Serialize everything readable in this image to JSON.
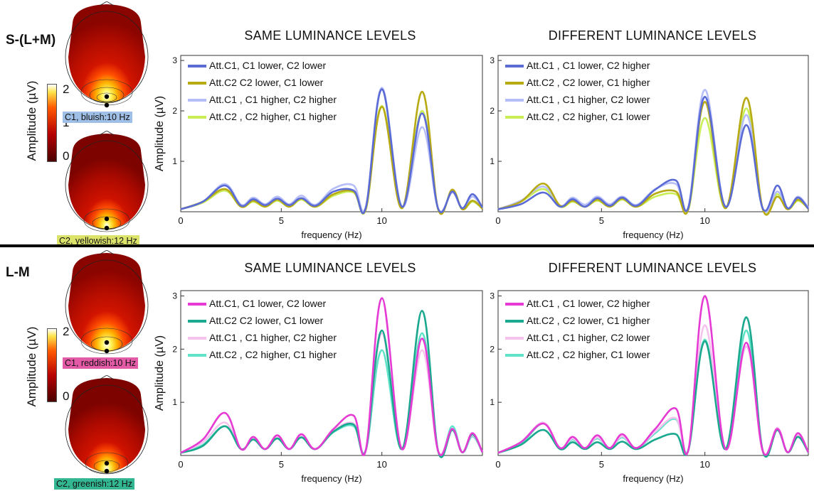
{
  "rows": [
    {
      "label": "S-(L+M)",
      "colorbar": {
        "label": "Amplitude (µV)",
        "ticks": [
          "2",
          "1",
          "0"
        ]
      },
      "heads": [
        {
          "caption": "C1, bluish:10 Hz",
          "caption_bg": "#9fbfe6"
        },
        {
          "caption": "C2, yellowish:12 Hz",
          "caption_bg": "#dbe36b"
        }
      ]
    },
    {
      "label": "L-M",
      "colorbar": {
        "label": "Amplitude (µV)",
        "ticks": [
          "2",
          "1",
          "0"
        ]
      },
      "heads": [
        {
          "caption": "C1, reddish:10 Hz",
          "caption_bg": "#e35aa6"
        },
        {
          "caption": "C2, greenish:12 Hz",
          "caption_bg": "#33b792"
        }
      ]
    }
  ],
  "chart_data": [
    {
      "type": "line",
      "title": "SAME LUMINANCE LEVELS",
      "xlabel": "frequency (Hz)",
      "ylabel": "Amplitude (µV)",
      "xlim": [
        0,
        15
      ],
      "ylim": [
        0,
        3.1
      ],
      "xticks": [
        "0",
        "5",
        "10"
      ],
      "yticks": [
        "1",
        "2",
        "3"
      ],
      "series": [
        {
          "name": "Att.C1, C1 lower, C2 lower",
          "color": "#5b6bd6",
          "values": [
            0.05,
            0.2,
            0.52,
            0.12,
            0.25,
            0.13,
            0.26,
            0.13,
            0.27,
            0.12,
            0.4,
            0.42,
            0.08,
            2.43,
            0.1,
            1.95,
            0.06,
            0.4,
            0.07,
            0.35,
            0.08
          ]
        },
        {
          "name": "Att.C2  C2 lower, C1 lower",
          "color": "#b7aa12",
          "values": [
            0.05,
            0.2,
            0.45,
            0.1,
            0.22,
            0.1,
            0.24,
            0.1,
            0.26,
            0.1,
            0.35,
            0.4,
            0.05,
            2.08,
            0.07,
            2.38,
            0.05,
            0.44,
            0.05,
            0.22,
            0.06
          ]
        },
        {
          "name": "Att.C1 , C1 higher, C2 higher",
          "color": "#b6befa",
          "values": [
            0.05,
            0.2,
            0.55,
            0.14,
            0.28,
            0.15,
            0.3,
            0.15,
            0.32,
            0.14,
            0.46,
            0.52,
            0.1,
            2.46,
            0.1,
            1.68,
            0.06,
            0.38,
            0.07,
            0.3,
            0.08
          ]
        },
        {
          "name": "Att.C2 , C2 higher, C1 higher",
          "color": "#c9ee56",
          "values": [
            0.05,
            0.18,
            0.42,
            0.1,
            0.2,
            0.1,
            0.22,
            0.1,
            0.24,
            0.1,
            0.32,
            0.38,
            0.05,
            2.1,
            0.07,
            2.0,
            0.05,
            0.4,
            0.05,
            0.2,
            0.06
          ]
        }
      ]
    },
    {
      "type": "line",
      "title": "DIFFERENT LUMINANCE LEVELS",
      "xlabel": "frequency (Hz)",
      "ylabel": "",
      "xlim": [
        0,
        15
      ],
      "ylim": [
        0,
        3.1
      ],
      "xticks": [
        "0",
        "5",
        "10"
      ],
      "yticks": [
        "1",
        "2",
        "3"
      ],
      "series": [
        {
          "name": "Att.C1 , C1 lower, C2 higher",
          "color": "#5b6bd6",
          "values": [
            0.05,
            0.15,
            0.38,
            0.1,
            0.25,
            0.1,
            0.27,
            0.12,
            0.28,
            0.12,
            0.44,
            0.62,
            0.08,
            2.28,
            0.1,
            1.72,
            0.06,
            0.52,
            0.07,
            0.28,
            0.06
          ]
        },
        {
          "name": "Att.C2 , C2 lower, C1 higher",
          "color": "#b7aa12",
          "values": [
            0.05,
            0.2,
            0.56,
            0.12,
            0.22,
            0.1,
            0.24,
            0.1,
            0.26,
            0.1,
            0.36,
            0.4,
            0.05,
            2.18,
            0.07,
            2.26,
            0.05,
            0.3,
            0.05,
            0.24,
            0.06
          ]
        },
        {
          "name": "Att.C1 , C1 higher, C2 lower",
          "color": "#b6befa",
          "values": [
            0.05,
            0.22,
            0.5,
            0.12,
            0.28,
            0.14,
            0.3,
            0.15,
            0.3,
            0.14,
            0.45,
            0.55,
            0.1,
            2.42,
            0.1,
            1.92,
            0.06,
            0.4,
            0.07,
            0.3,
            0.08
          ]
        },
        {
          "name": "Att.C2 , C2 higher, C1 lower",
          "color": "#c9ee56",
          "values": [
            0.05,
            0.2,
            0.45,
            0.1,
            0.2,
            0.1,
            0.22,
            0.1,
            0.24,
            0.1,
            0.3,
            0.35,
            0.05,
            1.86,
            0.07,
            2.05,
            0.05,
            0.35,
            0.05,
            0.22,
            0.06
          ]
        }
      ]
    },
    {
      "type": "line",
      "title": "SAME LUMINANCE LEVELS",
      "xlabel": "frequency (Hz)",
      "ylabel": "Amplitude (µV)",
      "xlim": [
        0,
        15
      ],
      "ylim": [
        0,
        3.1
      ],
      "xticks": [
        "0",
        "5",
        "10"
      ],
      "yticks": [
        "1",
        "2",
        "3"
      ],
      "series": [
        {
          "name": "Att.C1, C1 lower, C2 lower",
          "color": "#e53ad4",
          "values": [
            0.05,
            0.3,
            0.8,
            0.12,
            0.35,
            0.12,
            0.38,
            0.12,
            0.4,
            0.12,
            0.5,
            0.75,
            0.1,
            2.96,
            0.12,
            2.2,
            0.08,
            0.5,
            0.06,
            0.42,
            0.06
          ]
        },
        {
          "name": "Att.C2  C2 lower, C1 lower",
          "color": "#1aa88e",
          "values": [
            0.05,
            0.18,
            0.55,
            0.12,
            0.3,
            0.12,
            0.32,
            0.12,
            0.34,
            0.12,
            0.45,
            0.58,
            0.1,
            2.35,
            0.12,
            2.72,
            0.08,
            0.48,
            0.06,
            0.4,
            0.06
          ]
        },
        {
          "name": "Att.C1 , C1 higher, C2 higher",
          "color": "#f5c2ee",
          "values": [
            0.05,
            0.25,
            0.62,
            0.12,
            0.32,
            0.12,
            0.34,
            0.12,
            0.36,
            0.12,
            0.47,
            0.6,
            0.1,
            2.3,
            0.12,
            1.98,
            0.08,
            0.5,
            0.06,
            0.38,
            0.06
          ]
        },
        {
          "name": "Att.C2 , C2 higher, C1 higher",
          "color": "#5fe3c8",
          "values": [
            0.05,
            0.2,
            0.55,
            0.12,
            0.3,
            0.12,
            0.32,
            0.12,
            0.34,
            0.12,
            0.44,
            0.55,
            0.1,
            1.98,
            0.12,
            2.3,
            0.08,
            0.55,
            0.06,
            0.36,
            0.06
          ]
        }
      ]
    },
    {
      "type": "line",
      "title": "DIFFERENT LUMINANCE LEVELS",
      "xlabel": "frequency (Hz)",
      "ylabel": "",
      "xlim": [
        0,
        15
      ],
      "ylim": [
        0,
        3.1
      ],
      "xticks": [
        "0",
        "5",
        "10"
      ],
      "yticks": [
        "1",
        "2",
        "3"
      ],
      "series": [
        {
          "name": "Att.C1 , C1 lower, C2 higher",
          "color": "#e53ad4",
          "values": [
            0.05,
            0.25,
            0.6,
            0.14,
            0.35,
            0.14,
            0.38,
            0.14,
            0.4,
            0.14,
            0.5,
            0.88,
            0.1,
            3.0,
            0.12,
            2.12,
            0.08,
            0.5,
            0.06,
            0.42,
            0.06
          ]
        },
        {
          "name": "Att.C2 , C2 lower, C1 higher",
          "color": "#1aa88e",
          "values": [
            0.05,
            0.2,
            0.48,
            0.12,
            0.25,
            0.12,
            0.25,
            0.12,
            0.26,
            0.12,
            0.3,
            0.4,
            0.1,
            2.15,
            0.12,
            2.6,
            0.08,
            0.48,
            0.06,
            0.35,
            0.06
          ]
        },
        {
          "name": "Att.C1 , C1 higher, C2 lower",
          "color": "#f5c2ee",
          "values": [
            0.05,
            0.25,
            0.62,
            0.14,
            0.32,
            0.14,
            0.34,
            0.14,
            0.36,
            0.14,
            0.45,
            0.7,
            0.1,
            2.45,
            0.12,
            2.05,
            0.08,
            0.52,
            0.06,
            0.38,
            0.06
          ]
        },
        {
          "name": "Att.C2 , C2 higher, C1 lower",
          "color": "#5fe3c8",
          "values": [
            0.05,
            0.22,
            0.6,
            0.14,
            0.3,
            0.14,
            0.32,
            0.14,
            0.34,
            0.14,
            0.42,
            0.68,
            0.1,
            2.18,
            0.12,
            2.35,
            0.08,
            0.48,
            0.06,
            0.36,
            0.06
          ]
        }
      ]
    }
  ]
}
